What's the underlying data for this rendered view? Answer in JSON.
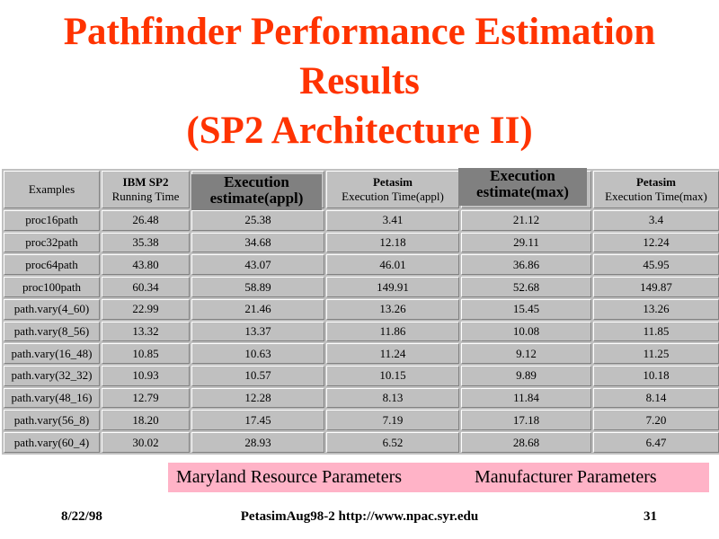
{
  "title": {
    "line1": "Pathfinder Performance Estimation",
    "line2": "Results",
    "line3": "(SP2 Architecture II)"
  },
  "table": {
    "headers": {
      "examples": "Examples",
      "ibm_line1": "IBM SP2",
      "ibm_line2": "Running Time",
      "petasim_appl_line1": "Petasim",
      "petasim_appl_line2": "Execution Time(appl)",
      "petasim_max_line1": "Petasim",
      "petasim_max_line2": "Execution Time(max)"
    },
    "rows": [
      [
        "proc16path",
        "26.48",
        "25.38",
        "3.41",
        "21.12",
        "3.4"
      ],
      [
        "proc32path",
        "35.38",
        "34.68",
        "12.18",
        "29.11",
        "12.24"
      ],
      [
        "proc64path",
        "43.80",
        "43.07",
        "46.01",
        "36.86",
        "45.95"
      ],
      [
        "proc100path",
        "60.34",
        "58.89",
        "149.91",
        "52.68",
        "149.87"
      ],
      [
        "path.vary(4_60)",
        "22.99",
        "21.46",
        "13.26",
        "15.45",
        "13.26"
      ],
      [
        "path.vary(8_56)",
        "13.32",
        "13.37",
        "11.86",
        "10.08",
        "11.85"
      ],
      [
        "path.vary(16_48)",
        "10.85",
        "10.63",
        "11.24",
        "9.12",
        "11.25"
      ],
      [
        "path.vary(32_32)",
        "10.93",
        "10.57",
        "10.15",
        "9.89",
        "10.18"
      ],
      [
        "path.vary(48_16)",
        "12.79",
        "12.28",
        "8.13",
        "11.84",
        "8.14"
      ],
      [
        "path.vary(56_8)",
        "18.20",
        "17.45",
        "7.19",
        "17.18",
        "7.20"
      ],
      [
        "path.vary(60_4)",
        "30.02",
        "28.93",
        "6.52",
        "28.68",
        "6.47"
      ]
    ]
  },
  "overlays": {
    "appl_line1": "Execution",
    "appl_line2": "estimate(appl)",
    "max_line1": "Execution",
    "max_line2": "estimate(max)"
  },
  "legend": {
    "maryland": "Maryland Resource Parameters",
    "manufacturer": "Manufacturer Parameters",
    "background_color": "#ffb3c7"
  },
  "footer": {
    "date": "8/22/98",
    "center": "PetasimAug98-2  http://www.npac.syr.edu",
    "page": "31"
  },
  "colors": {
    "title": "#ff3300",
    "table_bg": "#c0c0c0",
    "overlay_bg": "#808080"
  }
}
